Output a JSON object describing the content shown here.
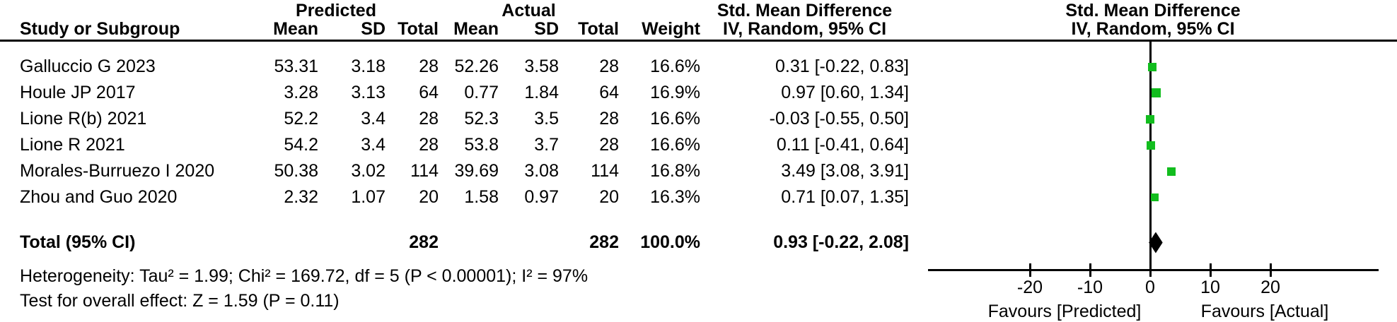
{
  "table": {
    "group_headers": {
      "predicted": "Predicted",
      "actual": "Actual",
      "smd": "Std. Mean Difference"
    },
    "col_headers": {
      "study": "Study or Subgroup",
      "mean": "Mean",
      "sd": "SD",
      "total": "Total",
      "weight": "Weight",
      "ci": "IV, Random, 95% CI"
    },
    "rows": [
      {
        "study": "Galluccio G 2023",
        "p_mean": "53.31",
        "p_sd": "3.18",
        "p_total": "28",
        "a_mean": "52.26",
        "a_sd": "3.58",
        "a_total": "28",
        "weight": "16.6%",
        "ci": "0.31 [-0.22, 0.83]"
      },
      {
        "study": "Houle JP 2017",
        "p_mean": "3.28",
        "p_sd": "3.13",
        "p_total": "64",
        "a_mean": "0.77",
        "a_sd": "1.84",
        "a_total": "64",
        "weight": "16.9%",
        "ci": "0.97 [0.60, 1.34]"
      },
      {
        "study": "Lione R(b) 2021",
        "p_mean": "52.2",
        "p_sd": "3.4",
        "p_total": "28",
        "a_mean": "52.3",
        "a_sd": "3.5",
        "a_total": "28",
        "weight": "16.6%",
        "ci": "-0.03 [-0.55, 0.50]"
      },
      {
        "study": "Lione R 2021",
        "p_mean": "54.2",
        "p_sd": "3.4",
        "p_total": "28",
        "a_mean": "53.8",
        "a_sd": "3.7",
        "a_total": "28",
        "weight": "16.6%",
        "ci": "0.11 [-0.41, 0.64]"
      },
      {
        "study": "Morales-Burruezo I 2020",
        "p_mean": "50.38",
        "p_sd": "3.02",
        "p_total": "114",
        "a_mean": "39.69",
        "a_sd": "3.08",
        "a_total": "114",
        "weight": "16.8%",
        "ci": "3.49 [3.08, 3.91]"
      },
      {
        "study": "Zhou and Guo 2020",
        "p_mean": "2.32",
        "p_sd": "1.07",
        "p_total": "20",
        "a_mean": "1.58",
        "a_sd": "0.97",
        "a_total": "20",
        "weight": "16.3%",
        "ci": "0.71 [0.07, 1.35]"
      }
    ],
    "total_row": {
      "label": "Total (95% CI)",
      "p_total": "282",
      "a_total": "282",
      "weight": "100.0%",
      "ci": "0.93 [-0.22, 2.08]"
    },
    "footnotes": {
      "heterogeneity": "Heterogeneity: Tau² = 1.99; Chi² = 169.72, df = 5 (P < 0.00001); I² = 97%",
      "overall_effect": "Test for overall effect: Z = 1.59 (P = 0.11)"
    }
  },
  "plot": {
    "header_line1": "Std. Mean Difference",
    "header_line2": "IV, Random, 95% CI",
    "marker_color": "#12bd1e",
    "diamond_color": "#000000"
  },
  "chart_data": {
    "type": "forest",
    "effect_measure": "Std. Mean Difference (IV, Random, 95% CI)",
    "studies": [
      "Galluccio G 2023",
      "Houle JP 2017",
      "Lione R(b) 2021",
      "Lione R 2021",
      "Morales-Burruezo I 2020",
      "Zhou and Guo 2020"
    ],
    "smd": [
      0.31,
      0.97,
      -0.03,
      0.11,
      3.49,
      0.71
    ],
    "ci_low": [
      -0.22,
      0.6,
      -0.55,
      -0.41,
      3.08,
      0.07
    ],
    "ci_high": [
      0.83,
      1.34,
      0.5,
      0.64,
      3.91,
      1.35
    ],
    "weights_pct": [
      16.6,
      16.9,
      16.6,
      16.6,
      16.8,
      16.3
    ],
    "totals": {
      "predicted_n": 282,
      "actual_n": 282,
      "weight_pct": 100.0
    },
    "overall": {
      "smd": 0.93,
      "ci_low": -0.22,
      "ci_high": 2.08
    },
    "heterogeneity": {
      "tau2": 1.99,
      "chi2": 169.72,
      "df": 5,
      "p": "< 0.00001",
      "i2_pct": 97
    },
    "overall_effect_test": {
      "z": 1.59,
      "p": 0.11
    },
    "xticks": [
      -20,
      -10,
      0,
      10,
      20
    ],
    "xlim": [
      -37,
      38
    ],
    "footer_left": "Favours [Predicted]",
    "footer_right": "Favours [Actual]"
  }
}
